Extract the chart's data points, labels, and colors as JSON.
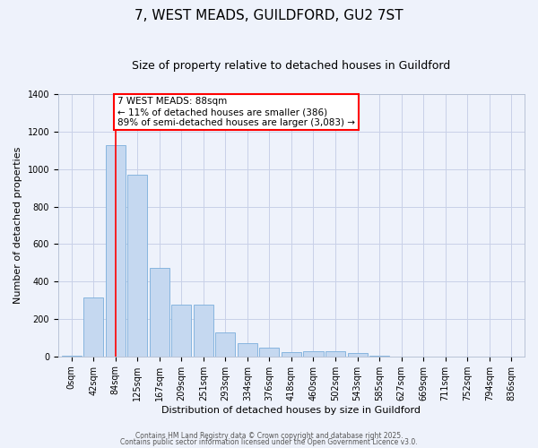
{
  "title": "7, WEST MEADS, GUILDFORD, GU2 7ST",
  "subtitle": "Size of property relative to detached houses in Guildford",
  "xlabel": "Distribution of detached houses by size in Guildford",
  "ylabel": "Number of detached properties",
  "bar_labels": [
    "0sqm",
    "42sqm",
    "84sqm",
    "125sqm",
    "167sqm",
    "209sqm",
    "251sqm",
    "293sqm",
    "334sqm",
    "376sqm",
    "418sqm",
    "460sqm",
    "502sqm",
    "543sqm",
    "585sqm",
    "627sqm",
    "669sqm",
    "711sqm",
    "752sqm",
    "794sqm",
    "836sqm"
  ],
  "bar_values": [
    5,
    315,
    1130,
    970,
    475,
    275,
    275,
    130,
    70,
    45,
    22,
    27,
    27,
    18,
    5,
    0,
    0,
    0,
    0,
    0,
    0
  ],
  "bar_color": "#c5d8f0",
  "bar_edge_color": "#7aaedb",
  "background_color": "#eef2fb",
  "grid_color": "#c8d0e8",
  "vline_x": 2,
  "vline_color": "red",
  "annotation_text": "7 WEST MEADS: 88sqm\n← 11% of detached houses are smaller (386)\n89% of semi-detached houses are larger (3,083) →",
  "annotation_box_color": "white",
  "annotation_box_edge_color": "red",
  "ylim": [
    0,
    1400
  ],
  "yticks": [
    0,
    200,
    400,
    600,
    800,
    1000,
    1200,
    1400
  ],
  "title_fontsize": 11,
  "subtitle_fontsize": 9,
  "xlabel_fontsize": 8,
  "ylabel_fontsize": 8,
  "tick_fontsize": 7,
  "annot_fontsize": 7.5,
  "footer_line1": "Contains HM Land Registry data © Crown copyright and database right 2025.",
  "footer_line2": "Contains public sector information licensed under the Open Government Licence v3.0."
}
